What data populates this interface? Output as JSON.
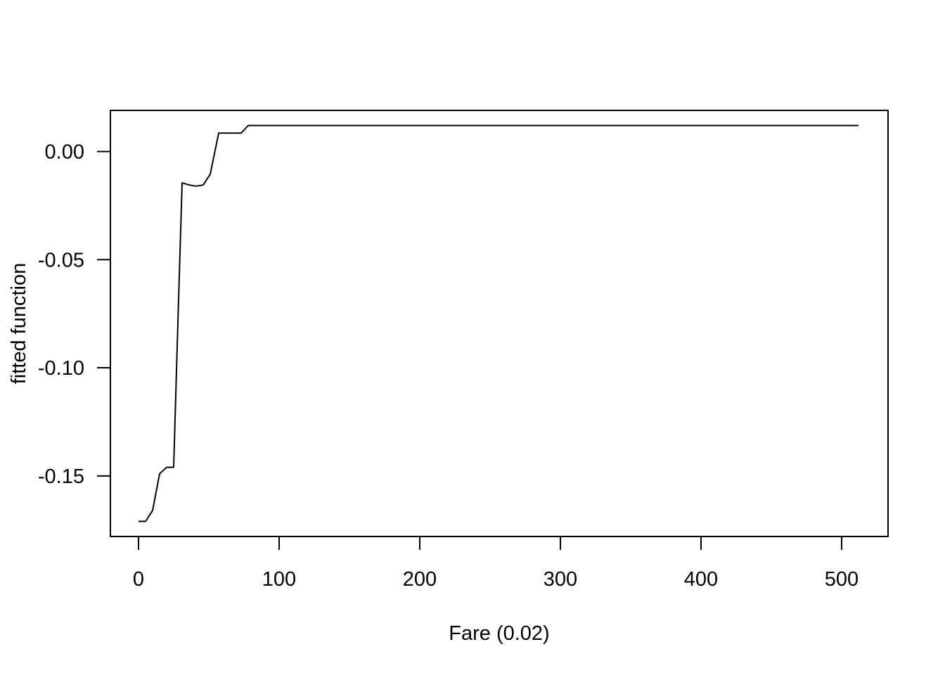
{
  "chart_data": {
    "type": "line",
    "title": "",
    "xlabel": "Fare  (0.02)",
    "ylabel": "fitted function",
    "xlim": [
      -20,
      533
    ],
    "ylim": [
      -0.178,
      0.019
    ],
    "xticks": [
      0,
      100,
      200,
      300,
      400,
      500
    ],
    "xtick_labels": [
      "0",
      "100",
      "200",
      "300",
      "400",
      "500"
    ],
    "yticks": [
      -0.15,
      -0.1,
      -0.05,
      0.0
    ],
    "ytick_labels": [
      "-0.15",
      "-0.10",
      "-0.05",
      "0.00"
    ],
    "grid": false,
    "legend": "none",
    "line_color": "#000000",
    "series": [
      {
        "x": [
          0,
          5,
          10,
          15,
          20,
          25,
          28,
          31,
          36,
          41,
          46,
          51,
          57,
          62,
          67,
          73,
          78,
          83,
          100,
          150,
          200,
          250,
          300,
          350,
          400,
          450,
          500,
          512
        ],
        "y": [
          -0.171,
          -0.171,
          -0.166,
          -0.149,
          -0.146,
          -0.146,
          -0.079,
          -0.0145,
          -0.0155,
          -0.016,
          -0.0155,
          -0.0105,
          0.0085,
          0.0085,
          0.0085,
          0.0085,
          0.012,
          0.012,
          0.012,
          0.012,
          0.012,
          0.012,
          0.012,
          0.012,
          0.012,
          0.012,
          0.012,
          0.012
        ]
      }
    ]
  }
}
